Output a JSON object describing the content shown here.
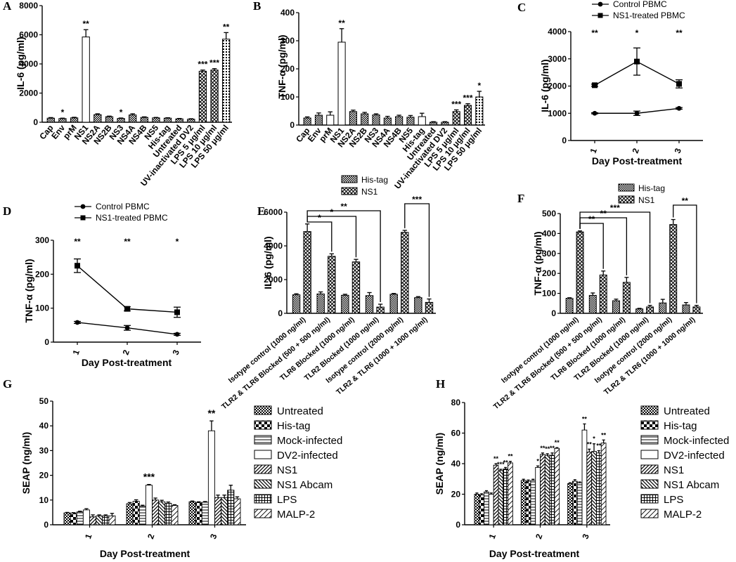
{
  "figure_labels": [
    "A",
    "B",
    "C",
    "D",
    "E",
    "F",
    "G",
    "H"
  ],
  "chart_data": [
    {
      "id": "A",
      "type": "bar",
      "ylabel": "IL-6 (pg/ml)",
      "ylim": [
        0,
        8000
      ],
      "yticks": [
        0,
        2000,
        4000,
        6000,
        8000
      ],
      "categories": [
        "Cap",
        "Env",
        "prM",
        "NS1",
        "NS2A",
        "NS2B",
        "NS3",
        "NS4A",
        "NS4B",
        "NS5",
        "His-tag",
        "Untreated",
        "UV-inactivated DV2",
        "LPS 5 μg/ml",
        "LPS 10 μg/ml",
        "LPS 50 μg/ml"
      ],
      "values": [
        280,
        250,
        300,
        5850,
        520,
        380,
        260,
        500,
        330,
        300,
        280,
        230,
        210,
        3500,
        3580,
        5700
      ],
      "errors": [
        40,
        30,
        40,
        500,
        60,
        40,
        30,
        80,
        40,
        30,
        30,
        30,
        30,
        80,
        100,
        450
      ],
      "patterns": [
        "hatch",
        "hatch",
        "hatch",
        "white",
        "hatch",
        "hatch",
        "hatch",
        "hatch",
        "hatch",
        "hatch",
        "hatch",
        "hatch",
        "hatch",
        "cross",
        "cross",
        "dots"
      ],
      "significance": [
        "",
        "*",
        "",
        "**",
        "",
        "",
        "*",
        "",
        "",
        "",
        "",
        "",
        "",
        "***",
        "***",
        "**"
      ]
    },
    {
      "id": "B",
      "type": "bar",
      "ylabel": "TNF-α (pg/ml)",
      "ylim": [
        0,
        400
      ],
      "yticks": [
        0,
        100,
        200,
        300,
        400
      ],
      "categories": [
        "Cap",
        "Env",
        "prM",
        "NS1",
        "NS2A",
        "NS2B",
        "NS3",
        "NS4A",
        "NS4B",
        "NS5",
        "His-tag",
        "Untreated",
        "UV-inactivated DV2",
        "LPS 5 μg/ml",
        "LPS 10 μg/ml",
        "LPS 50 μg/ml"
      ],
      "values": [
        25,
        35,
        35,
        295,
        48,
        40,
        36,
        25,
        30,
        28,
        30,
        10,
        10,
        48,
        70,
        100
      ],
      "errors": [
        4,
        8,
        12,
        48,
        5,
        5,
        4,
        6,
        5,
        6,
        12,
        2,
        2,
        6,
        6,
        20
      ],
      "patterns": [
        "hatch",
        "hatch",
        "white",
        "white",
        "hatch",
        "hatch",
        "hatch",
        "hatch",
        "hatch",
        "hatch",
        "white",
        "hatch",
        "hatch",
        "cross",
        "cross",
        "dots"
      ],
      "significance": [
        "",
        "",
        "",
        "**",
        "",
        "",
        "",
        "",
        "",
        "",
        "",
        "",
        "",
        "***",
        "***",
        "*"
      ]
    },
    {
      "id": "C",
      "type": "line",
      "xlabel": "Day Post-treatment",
      "ylabel": "IL-6 (pg/ml)",
      "x": [
        1,
        2,
        3
      ],
      "ylim": [
        0,
        4000
      ],
      "yticks": [
        0,
        1000,
        2000,
        3000,
        4000
      ],
      "series": [
        {
          "name": "Control PBMC",
          "marker": "circle",
          "values": [
            1000,
            1000,
            1180
          ],
          "errors": [
            20,
            80,
            30
          ]
        },
        {
          "name": "NS1-treated PBMC",
          "marker": "square",
          "values": [
            2030,
            2900,
            2080
          ],
          "errors": [
            40,
            500,
            150
          ]
        }
      ],
      "significance": [
        "**",
        "*",
        "**"
      ],
      "legend": "top"
    },
    {
      "id": "D",
      "type": "line",
      "xlabel": "Day Post-treatment",
      "ylabel": "TNF-α (pg/ml)",
      "x": [
        1,
        2,
        3
      ],
      "ylim": [
        0,
        300
      ],
      "yticks": [
        0,
        100,
        200,
        300
      ],
      "series": [
        {
          "name": "Control PBMC",
          "marker": "circle",
          "values": [
            58,
            42,
            23
          ],
          "errors": [
            3,
            7,
            3
          ]
        },
        {
          "name": "NS1-treated PBMC",
          "marker": "square",
          "values": [
            225,
            98,
            88
          ],
          "errors": [
            20,
            6,
            15
          ]
        }
      ],
      "significance": [
        "**",
        "**",
        "*"
      ],
      "legend": "top"
    },
    {
      "id": "E",
      "type": "bar",
      "ylabel": "IL-6 (pg/ml)",
      "ylim": [
        0,
        6000
      ],
      "yticks": [
        0,
        2000,
        4000,
        6000
      ],
      "categories": [
        "Isotype control (1000 ng/ml)",
        "TLR2 & TLR6 Blocked (500 + 500 ng/ml)",
        "TLR6 Blocked (1000 ng/ml)",
        "TLR2 Blocked (1000 ng/ml)",
        "Isotype control (2000 ng/ml)",
        "TLR2 & TLR6 (1000 + 1000 ng/ml)"
      ],
      "series": [
        {
          "name": "His-tag",
          "pattern": "hatch",
          "values": [
            1100,
            1150,
            1070,
            1050,
            1130,
            930
          ],
          "errors": [
            60,
            120,
            60,
            180,
            50,
            60
          ]
        },
        {
          "name": "NS1",
          "pattern": "cross",
          "values": [
            4850,
            3380,
            3050,
            370,
            4800,
            650
          ],
          "errors": [
            450,
            150,
            150,
            170,
            120,
            200
          ]
        }
      ],
      "brackets": [
        [
          "0",
          "1",
          "*"
        ],
        [
          "0",
          "2",
          "*"
        ],
        [
          "0",
          "3",
          "**"
        ],
        [
          "4",
          "5",
          "***"
        ]
      ],
      "legend": "top-right"
    },
    {
      "id": "F",
      "type": "bar",
      "ylabel": "TNF-α (pg/ml)",
      "ylim": [
        0,
        500
      ],
      "yticks": [
        0,
        100,
        200,
        300,
        400,
        500
      ],
      "categories": [
        "Isotype control (1000 ng/ml)",
        "TLR2 & TLR6 Blocked (500 + 500 ng/ml)",
        "TLR6 Blocked (1000 ng/ml)",
        "TLR2 Blocked (1000 ng/ml)",
        "Isotype control (2000 ng/ml)",
        "TLR2 & TLR6 (1000 + 1000 ng/ml)"
      ],
      "series": [
        {
          "name": "His-tag",
          "pattern": "hatch",
          "values": [
            75,
            90,
            63,
            22,
            52,
            42
          ],
          "errors": [
            3,
            12,
            8,
            3,
            18,
            12
          ]
        },
        {
          "name": "NS1",
          "pattern": "cross",
          "values": [
            408,
            192,
            155,
            32,
            445,
            32
          ],
          "errors": [
            5,
            20,
            25,
            8,
            25,
            8
          ]
        }
      ],
      "brackets": [
        [
          "0",
          "1",
          "**"
        ],
        [
          "0",
          "2",
          "**"
        ],
        [
          "0",
          "3",
          "***"
        ],
        [
          "4",
          "5",
          "**"
        ]
      ],
      "legend": "top-right"
    },
    {
      "id": "G",
      "type": "bar",
      "xlabel": "Day Post-treatment",
      "ylabel": "SEAP (ng/ml)",
      "ylim": [
        0,
        50
      ],
      "yticks": [
        0,
        10,
        20,
        30,
        40,
        50
      ],
      "categories": [
        "1",
        "2",
        "3"
      ],
      "series": [
        {
          "name": "Untreated",
          "pattern": "checker",
          "values": [
            4.8,
            8.5,
            9.3
          ],
          "errors": [
            0.2,
            0.5,
            0.3
          ]
        },
        {
          "name": "His-tag",
          "pattern": "bigchecker",
          "values": [
            4.7,
            9.5,
            9.0
          ],
          "errors": [
            0.2,
            0.6,
            0.3
          ]
        },
        {
          "name": "Mock-infected",
          "pattern": "hlines",
          "values": [
            5.2,
            7.5,
            9.1
          ],
          "errors": [
            0.3,
            0.4,
            0.3
          ]
        },
        {
          "name": "DV2-infected",
          "pattern": "white",
          "values": [
            6.0,
            16.0,
            38.0
          ],
          "errors": [
            0.5,
            0.3,
            4.0
          ]
        },
        {
          "name": "NS1",
          "pattern": "diag",
          "values": [
            3.2,
            10.0,
            11.0
          ],
          "errors": [
            0.8,
            0.8,
            1.0
          ]
        },
        {
          "name": "NS1 Abcam",
          "pattern": "backdiag",
          "values": [
            3.6,
            9.3,
            11.0
          ],
          "errors": [
            0.4,
            0.6,
            1.0
          ]
        },
        {
          "name": "LPS",
          "pattern": "grid",
          "values": [
            3.6,
            8.7,
            14.0
          ],
          "errors": [
            0.4,
            0.5,
            2.0
          ]
        },
        {
          "name": "MALP-2",
          "pattern": "diag2",
          "values": [
            3.6,
            7.8,
            10.5
          ],
          "errors": [
            1.0,
            0.3,
            0.8
          ]
        }
      ],
      "significance": [
        "",
        "***",
        "**"
      ],
      "legend": "right"
    },
    {
      "id": "H",
      "type": "bar",
      "xlabel": "Day Post-treatment",
      "ylabel": "SEAP (ng/ml)",
      "ylim": [
        0,
        80
      ],
      "yticks": [
        0,
        20,
        40,
        60,
        80
      ],
      "categories": [
        "1",
        "2",
        "3"
      ],
      "series": [
        {
          "name": "Untreated",
          "pattern": "checker",
          "values": [
            20,
            29,
            27
          ],
          "errors": [
            0.8,
            0.8,
            0.5
          ]
        },
        {
          "name": "His-tag",
          "pattern": "bigchecker",
          "values": [
            19.5,
            28.5,
            28.5
          ],
          "errors": [
            0.8,
            0.8,
            1.0
          ]
        },
        {
          "name": "Mock-infected",
          "pattern": "hlines",
          "values": [
            21.5,
            29,
            27.5
          ],
          "errors": [
            0.8,
            0.8,
            0.5
          ]
        },
        {
          "name": "DV2-infected",
          "pattern": "white",
          "values": [
            20,
            37.5,
            62
          ],
          "errors": [
            0.8,
            1.0,
            4.0
          ]
        },
        {
          "name": "NS1",
          "pattern": "diag",
          "values": [
            39,
            46,
            47.5
          ],
          "errors": [
            1.0,
            1.0,
            2.0
          ]
        },
        {
          "name": "NS1 Abcam",
          "pattern": "backdiag",
          "values": [
            35.5,
            45.5,
            48
          ],
          "errors": [
            0.8,
            1.0,
            5.0
          ]
        },
        {
          "name": "LPS",
          "pattern": "grid",
          "values": [
            36.5,
            45.5,
            47
          ],
          "errors": [
            1.0,
            1.5,
            1.5
          ]
        },
        {
          "name": "MALP-2",
          "pattern": "diag2",
          "values": [
            40.5,
            50,
            53.5
          ],
          "errors": [
            1.0,
            0.5,
            2.0
          ]
        }
      ],
      "significance_per_bar": [
        [
          "",
          "",
          "",
          "",
          "**",
          "***",
          "**",
          "**"
        ],
        [
          "",
          "",
          "",
          "*",
          "**",
          "**",
          "**",
          "**"
        ],
        [
          "",
          "",
          "",
          "**",
          "**",
          "*",
          "**",
          "**"
        ]
      ],
      "legend": "right"
    }
  ]
}
